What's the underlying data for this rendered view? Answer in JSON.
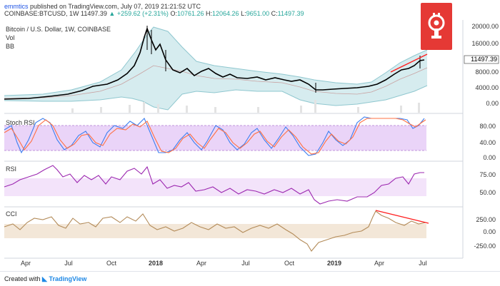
{
  "header": {
    "author": "emmtics",
    "published": "published on TradingView.com, July 07, 2019 21:21:52 UTC",
    "symbol": "COINBASE:BTCUSD, 1W",
    "last": "11497.39",
    "change_arrow": "▲",
    "change": "+259.62 (+2.31%)",
    "o_label": "O:",
    "o_value": "10761.26",
    "h_label": "H:",
    "h_value": "12064.26",
    "l_label": "L:",
    "l_value": "9651.00",
    "c_label": "C:",
    "c_value": "11497.39"
  },
  "main_pane": {
    "title": "Bitcoin / U.S. Dollar, 1W, COINBASE",
    "indicators": [
      "Vol",
      "BB"
    ],
    "price_axis": [
      "20000.00",
      "16000.00",
      "8000.00",
      "4000.00",
      "0.00"
    ],
    "last_price_tag": "11497.39"
  },
  "stoch_pane": {
    "title": "Stoch RSI",
    "axis": [
      "80.00",
      "40.00",
      "0.00"
    ]
  },
  "rsi_pane": {
    "title": "RSI",
    "axis": [
      "75.00",
      "50.00"
    ]
  },
  "cci_pane": {
    "title": "CCI",
    "axis": [
      "250.00",
      "0.00",
      "-250.00"
    ]
  },
  "x_axis": [
    "Apr",
    "Jul",
    "Oct",
    "2018",
    "Apr",
    "Jul",
    "Oct",
    "2019",
    "Apr",
    "Jul"
  ],
  "footer": {
    "created_with": "Created with",
    "brand": "TradingView"
  },
  "colors": {
    "up_candle": "#ffffff",
    "down_candle": "#000000",
    "bb_fill": "#d6ecef",
    "bb_line": "#8fc7cf",
    "stoch_k": "#3d7ff0",
    "stoch_d": "#ff7043",
    "stoch_band": "#e3c6f5",
    "rsi_line": "#9c27b0",
    "rsi_band": "#f3e3fa",
    "cci_line": "#b38b59",
    "cci_band": "#f3e7d8",
    "trendline": "#ff1f1f",
    "logo_bg": "#e53935"
  },
  "icons": {
    "logo": "bitcoin-podcast-logo-icon",
    "trendline": "trendline-icon",
    "tv": "tradingview-icon"
  }
}
